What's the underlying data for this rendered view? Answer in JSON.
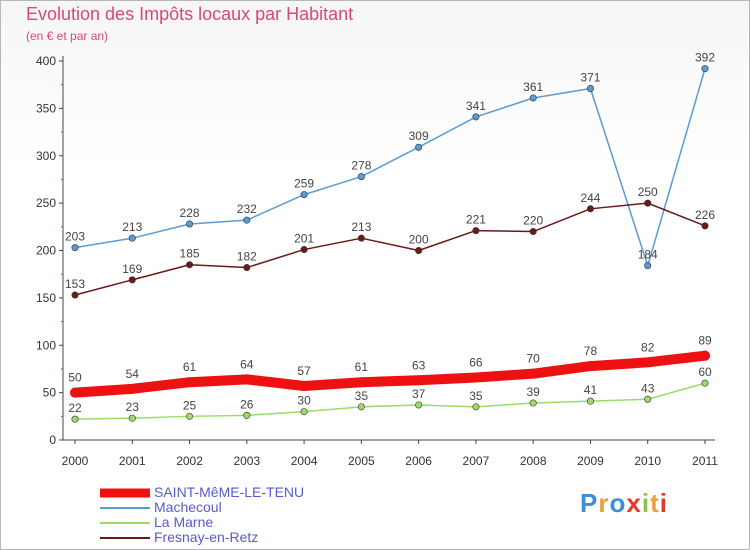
{
  "header": {
    "title": "Evolution des Impôts locaux par Habitant",
    "subtitle": "(en € et par an)"
  },
  "brand": {
    "text": "Proxiti",
    "colors": [
      "#3a8fd8",
      "#e8a23a",
      "#3a8fd8",
      "#e23a2a",
      "#8bc34a",
      "#e8a23a",
      "#e23a2a"
    ]
  },
  "chart_data": {
    "type": "line",
    "title": "Evolution des Impôts locaux par Habitant",
    "subtitle": "(en € et par an)",
    "x": [
      "2000",
      "2001",
      "2002",
      "2003",
      "2004",
      "2005",
      "2006",
      "2007",
      "2008",
      "2009",
      "2010",
      "2011"
    ],
    "ylim": [
      0,
      400
    ],
    "yticks": [
      0,
      50,
      100,
      150,
      200,
      250,
      300,
      350,
      400
    ],
    "grid": false,
    "legend_position": "bottom-left",
    "series": [
      {
        "name": "SAINT-MêME-LE-TENU",
        "color": "#ee1111",
        "values": [
          50,
          54,
          61,
          64,
          57,
          61,
          63,
          66,
          70,
          78,
          82,
          89
        ]
      },
      {
        "name": "Machecoul",
        "color": "#5a9bd4",
        "values": [
          203,
          213,
          228,
          232,
          259,
          278,
          309,
          341,
          361,
          371,
          184,
          392
        ]
      },
      {
        "name": "La Marne",
        "color": "#99dd66",
        "values": [
          22,
          23,
          25,
          26,
          30,
          35,
          37,
          35,
          39,
          41,
          43,
          60
        ]
      },
      {
        "name": "Fresnay-en-Retz",
        "color": "#6b1a1a",
        "values": [
          153,
          169,
          185,
          182,
          201,
          213,
          200,
          221,
          220,
          244,
          250,
          226
        ]
      }
    ]
  }
}
